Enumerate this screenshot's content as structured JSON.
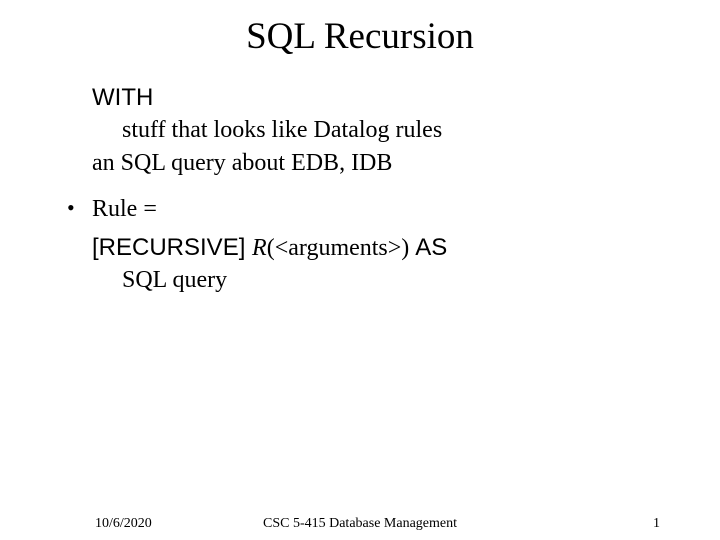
{
  "title": "SQL Recursion",
  "lines": {
    "with": "WITH",
    "stuff": "stuff that looks like Datalog rules",
    "ansql": "an SQL query about EDB, IDB",
    "rule_label": "Rule =",
    "rec_kw": "[RECURSIVE] ",
    "rec_r": "R",
    "rec_args": "(<arguments>) ",
    "rec_as": "AS",
    "sqlquery": "SQL query"
  },
  "footer": {
    "date": "10/6/2020",
    "center": "CSC 5-415 Database Management",
    "pagenum": "1"
  }
}
